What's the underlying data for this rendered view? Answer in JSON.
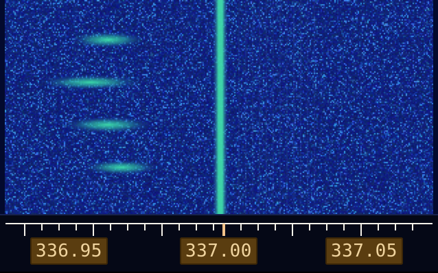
{
  "waterfall": {
    "background_color": "#0c1c73",
    "signal_color": "#39d0a0",
    "carrier_frequency": 337.0
  },
  "frequency_scale": {
    "labels": [
      "336.95",
      "337.00",
      "337.05"
    ],
    "accent_color": "#f3c38a",
    "label_background": "#5a3d10"
  }
}
